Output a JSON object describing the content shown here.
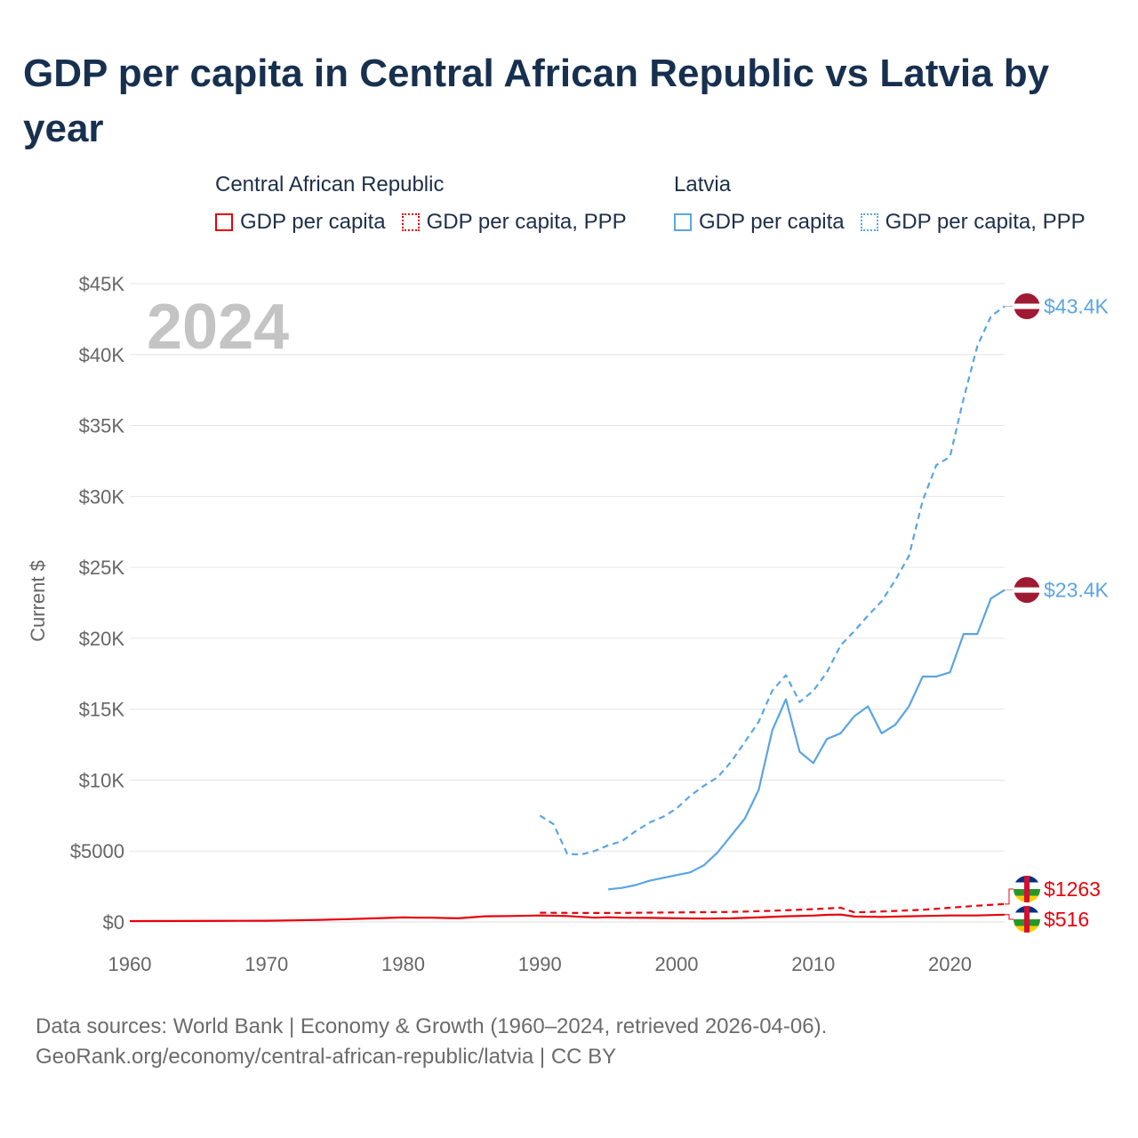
{
  "title": "GDP per capita in Central African Republic vs Latvia by year",
  "legend": {
    "groups": [
      {
        "name": "Central African Republic",
        "color": "#e8000b",
        "items": [
          {
            "label": "GDP per capita",
            "style": "solid"
          },
          {
            "label": "GDP per capita, PPP",
            "style": "dotted"
          }
        ]
      },
      {
        "name": "Latvia",
        "color": "#5aa5e3",
        "items": [
          {
            "label": "GDP per capita",
            "style": "solid"
          },
          {
            "label": "GDP per capita, PPP",
            "style": "dotted"
          }
        ]
      }
    ]
  },
  "year_watermark": "2024",
  "footer": {
    "line1": "Data sources: World Bank | Economy & Growth (1960–2024, retrieved 2026-04-06).",
    "line2": "GeoRank.org/economy/central-african-republic/latvia | CC BY"
  },
  "chart_data": {
    "type": "line",
    "title": "GDP per capita in Central African Republic vs Latvia by year",
    "xlabel": "",
    "ylabel": "Current $",
    "xlim": [
      1960,
      2024
    ],
    "ylim": [
      0,
      45000
    ],
    "x_ticks": [
      1960,
      1970,
      1980,
      1990,
      2000,
      2010,
      2020
    ],
    "y_ticks": [
      0,
      5000,
      10000,
      15000,
      20000,
      25000,
      30000,
      35000,
      40000,
      45000
    ],
    "y_tick_labels": [
      "$0",
      "$5000",
      "$10K",
      "$15K",
      "$20K",
      "$25K",
      "$30K",
      "$35K",
      "$40K",
      "$45K"
    ],
    "grid": true,
    "series": [
      {
        "name": "Latvia GDP per capita, PPP",
        "country": "Latvia",
        "color": "#5aa5e3",
        "dash": "dashed",
        "end_label": "$43.4K",
        "x": [
          1990,
          1991,
          1992,
          1993,
          1994,
          1995,
          1996,
          1997,
          1998,
          1999,
          2000,
          2001,
          2002,
          2003,
          2004,
          2005,
          2006,
          2007,
          2008,
          2009,
          2010,
          2011,
          2012,
          2013,
          2014,
          2015,
          2016,
          2017,
          2018,
          2019,
          2020,
          2021,
          2022,
          2023,
          2024
        ],
        "y": [
          7500,
          6900,
          4800,
          4750,
          5000,
          5400,
          5700,
          6400,
          7000,
          7400,
          8000,
          8900,
          9600,
          10200,
          11300,
          12700,
          14100,
          16300,
          17400,
          15500,
          16300,
          17600,
          19500,
          20500,
          21600,
          22600,
          24100,
          25800,
          29700,
          32200,
          32800,
          36900,
          40600,
          42700,
          43400
        ]
      },
      {
        "name": "Latvia GDP per capita",
        "country": "Latvia",
        "color": "#5aa5e3",
        "dash": "solid",
        "end_label": "$23.4K",
        "x": [
          1995,
          1996,
          1997,
          1998,
          1999,
          2000,
          2001,
          2002,
          2003,
          2004,
          2005,
          2006,
          2007,
          2008,
          2009,
          2010,
          2011,
          2012,
          2013,
          2014,
          2015,
          2016,
          2017,
          2018,
          2019,
          2020,
          2021,
          2022,
          2023,
          2024
        ],
        "y": [
          2300,
          2400,
          2600,
          2900,
          3100,
          3300,
          3500,
          4000,
          4900,
          6100,
          7300,
          9300,
          13500,
          15700,
          12000,
          11200,
          12900,
          13300,
          14500,
          15200,
          13300,
          13900,
          15200,
          17300,
          17300,
          17600,
          20300,
          20300,
          22800,
          23400
        ]
      },
      {
        "name": "Central African Republic GDP per capita, PPP",
        "country": "Central African Republic",
        "color": "#e8000b",
        "dash": "dashed",
        "end_label": "$1263",
        "x": [
          1990,
          1992,
          1994,
          1996,
          1998,
          2000,
          2002,
          2004,
          2006,
          2008,
          2010,
          2012,
          2013,
          2014,
          2016,
          2018,
          2020,
          2022,
          2024
        ],
        "y": [
          650,
          640,
          630,
          640,
          660,
          670,
          690,
          710,
          760,
          820,
          900,
          1000,
          680,
          700,
          780,
          860,
          1000,
          1150,
          1263
        ]
      },
      {
        "name": "Central African Republic GDP per capita",
        "country": "Central African Republic",
        "color": "#e8000b",
        "dash": "solid",
        "end_label": "$516",
        "x": [
          1960,
          1964,
          1968,
          1970,
          1972,
          1974,
          1976,
          1978,
          1980,
          1981,
          1982,
          1984,
          1986,
          1988,
          1990,
          1992,
          1994,
          1995,
          1996,
          1998,
          2000,
          2002,
          2004,
          2006,
          2008,
          2010,
          2011,
          2012,
          2013,
          2015,
          2018,
          2020,
          2022,
          2024
        ],
        "y": [
          60,
          70,
          80,
          90,
          110,
          150,
          200,
          260,
          320,
          300,
          300,
          260,
          400,
          420,
          460,
          420,
          300,
          330,
          300,
          290,
          260,
          240,
          260,
          320,
          400,
          450,
          500,
          520,
          380,
          360,
          420,
          460,
          460,
          516
        ]
      }
    ]
  }
}
